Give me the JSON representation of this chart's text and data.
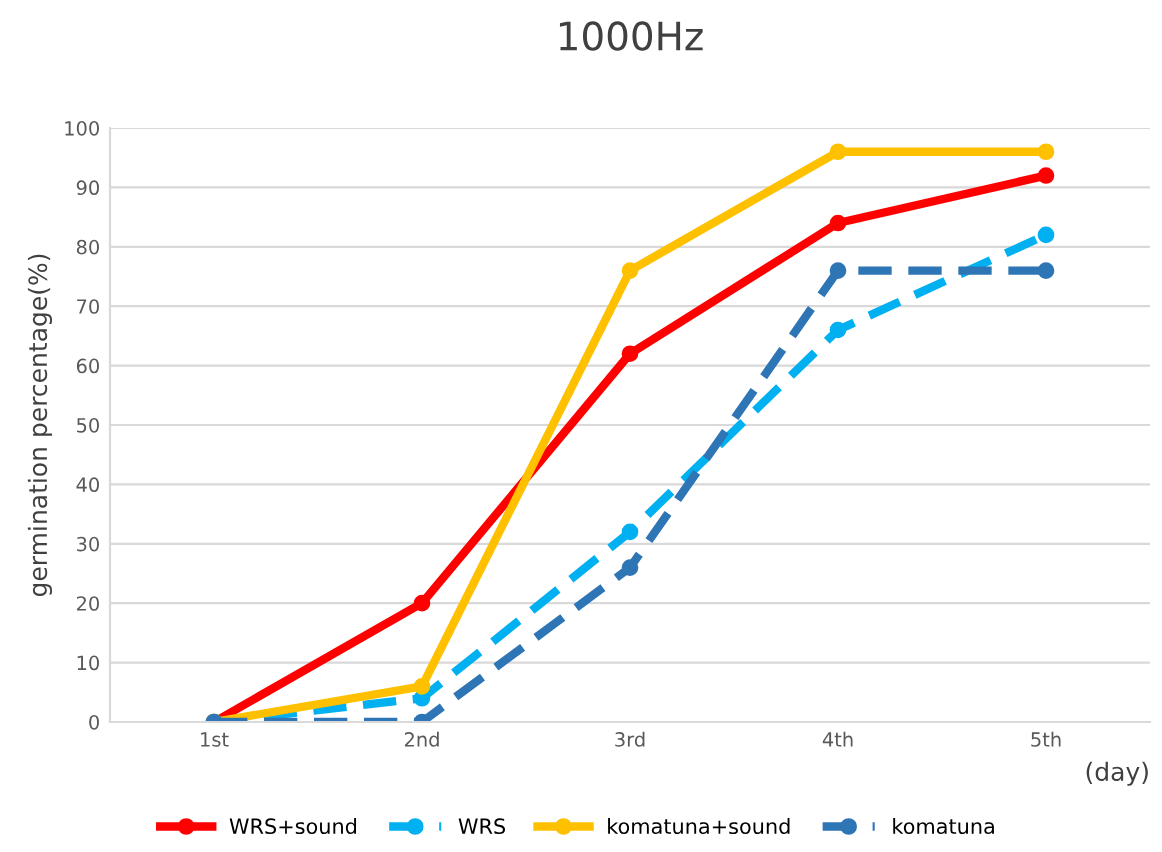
{
  "chart_data": {
    "type": "line",
    "title": "1000Hz",
    "ylabel": "germination percentage(%)",
    "xlabel": "(day)",
    "categories": [
      "1st",
      "2nd",
      "3rd",
      "4th",
      "5th"
    ],
    "series": [
      {
        "name": "WRS+sound",
        "color": "#ff0000",
        "values": [
          0,
          20,
          62,
          84,
          92
        ],
        "line_style": "solid"
      },
      {
        "name": "WRS",
        "color": "#00b0f0",
        "values": [
          0,
          4,
          32,
          66,
          82
        ],
        "line_style": "dashed"
      },
      {
        "name": "komatuna+sound",
        "color": "#ffc000",
        "values": [
          0,
          6,
          76,
          96,
          96
        ],
        "line_style": "solid"
      },
      {
        "name": "komatuna",
        "color": "#2e75b6",
        "values": [
          0,
          0,
          26,
          76,
          76
        ],
        "line_style": "dashed"
      }
    ],
    "ylim": [
      0,
      100
    ],
    "yticks": [
      0,
      10,
      20,
      30,
      40,
      50,
      60,
      70,
      80,
      90,
      100
    ],
    "grid": "y",
    "legend": "bottom",
    "marker": "circle"
  }
}
